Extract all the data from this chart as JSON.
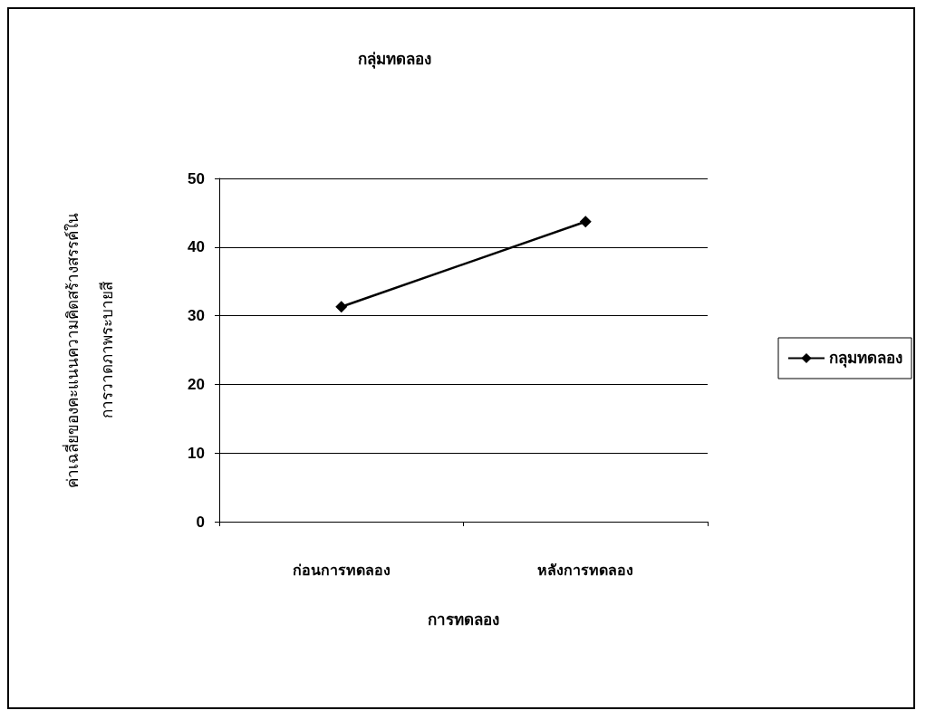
{
  "chart_data": {
    "type": "line",
    "title": "กลุ่มทดลอง",
    "xlabel": "การทดลอง",
    "ylabel": "ค่าเฉลี่ยของคะแนนความคิดสร้างสรรค์ใน\nการวาดภาพระบายสี",
    "categories": [
      "ก่อนการทดลอง",
      "หลังการทดลอง"
    ],
    "series": [
      {
        "name": "กลุมทดลอง",
        "color": "#000000",
        "values": [
          31.3,
          43.7
        ]
      }
    ],
    "ylim": [
      0,
      50
    ],
    "yticks": [
      0,
      10,
      20,
      30,
      40,
      50
    ],
    "grid": "y",
    "legend": "right",
    "marker": "diamond",
    "line_style": "solid"
  }
}
